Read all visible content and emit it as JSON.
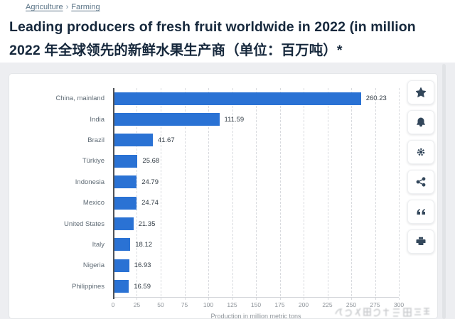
{
  "breadcrumb": {
    "items": [
      "Agriculture",
      "Farming"
    ],
    "separator": "›"
  },
  "title": {
    "line1": "Leading producers of fresh fruit worldwide in 2022 (in million",
    "line2": "2022 年全球领先的新鲜水果生产商（单位：百万吨）*"
  },
  "toolbar": {
    "buttons": [
      "favorite-star",
      "notify-bell",
      "settings-gear",
      "share",
      "cite-quote",
      "print"
    ]
  },
  "chart_data": {
    "type": "bar",
    "orientation": "horizontal",
    "categories": [
      "China, mainland",
      "India",
      "Brazil",
      "Türkiye",
      "Indonesia",
      "Mexico",
      "United States",
      "Italy",
      "Nigeria",
      "Philippines"
    ],
    "values": [
      260.23,
      111.59,
      41.67,
      25.68,
      24.79,
      24.74,
      21.35,
      18.12,
      16.93,
      16.59
    ],
    "value_labels": [
      "260.23",
      "111.59",
      "41.67",
      "25.68",
      "24.79",
      "24.74",
      "21.35",
      "18.12",
      "16.93",
      "16.59"
    ],
    "xlabel": "Production in million metric tons",
    "ylabel": "",
    "xlim": [
      0,
      300
    ],
    "xticks": [
      0,
      25,
      50,
      75,
      100,
      125,
      150,
      175,
      200,
      225,
      250,
      275,
      300
    ],
    "grid": true,
    "bar_color": "#2a72d4",
    "legend": null
  },
  "colors": {
    "accent_blue": "#2a72d4",
    "title_text": "#16283c",
    "breadcrumb_text": "#5b7487",
    "section_bg": "#edeef1",
    "card_bg": "#ffffff",
    "icon": "#33475b"
  }
}
